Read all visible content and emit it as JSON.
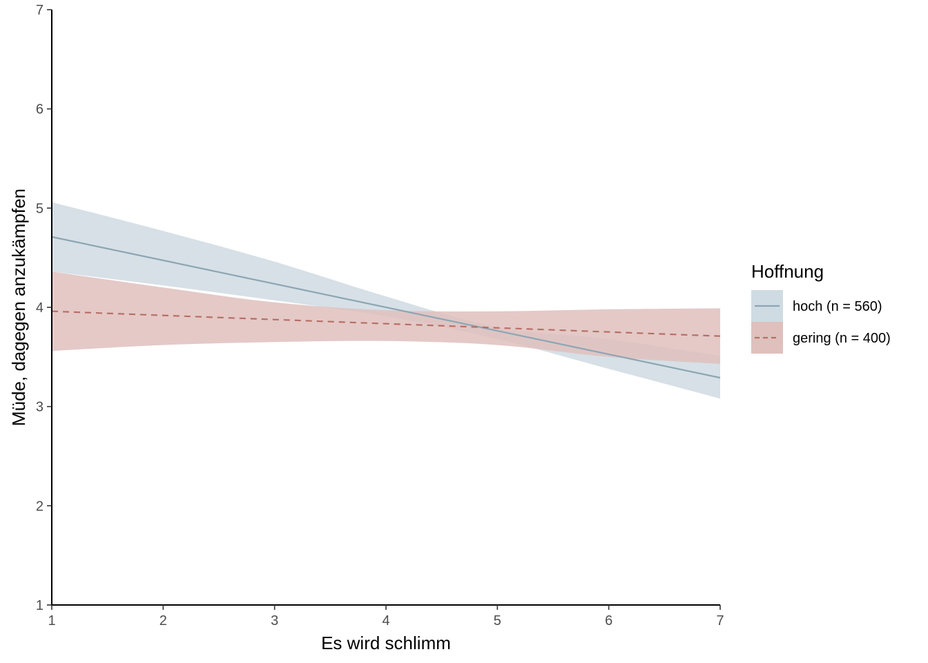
{
  "chart_data": {
    "type": "line",
    "xlabel": "Es wird schlimm",
    "ylabel": "Müde, dagegen anzukämpfen",
    "xlim": [
      1,
      7
    ],
    "ylim": [
      1,
      7
    ],
    "xticks": [
      1,
      2,
      3,
      4,
      5,
      6,
      7
    ],
    "yticks": [
      1,
      2,
      3,
      4,
      5,
      6,
      7
    ],
    "grid": false,
    "legend": {
      "title": "Hoffnung",
      "placement": "right"
    },
    "series": [
      {
        "name": "hoch (n = 560)",
        "line_style": "solid",
        "line_color": "#8da5b3",
        "band_color": "#cfdbe2",
        "x": [
          1,
          7
        ],
        "y": [
          4.71,
          3.29
        ],
        "ci_x": [
          1,
          2,
          3,
          4,
          5,
          6,
          7
        ],
        "ci_lower": [
          4.36,
          4.22,
          4.07,
          3.91,
          3.68,
          3.38,
          3.08
        ],
        "ci_upper": [
          5.06,
          4.77,
          4.46,
          4.11,
          3.8,
          3.68,
          3.51
        ]
      },
      {
        "name": "gering (n = 400)",
        "line_style": "dashed",
        "line_color": "#b86e66",
        "band_color": "#dfc0bd",
        "x": [
          1,
          7
        ],
        "y": [
          3.96,
          3.71
        ],
        "ci_x": [
          1,
          2,
          3,
          4,
          5,
          6,
          7
        ],
        "ci_lower": [
          3.56,
          3.62,
          3.65,
          3.66,
          3.62,
          3.5,
          3.43
        ],
        "ci_upper": [
          4.36,
          4.2,
          4.05,
          3.97,
          3.96,
          3.98,
          3.99
        ]
      }
    ]
  }
}
